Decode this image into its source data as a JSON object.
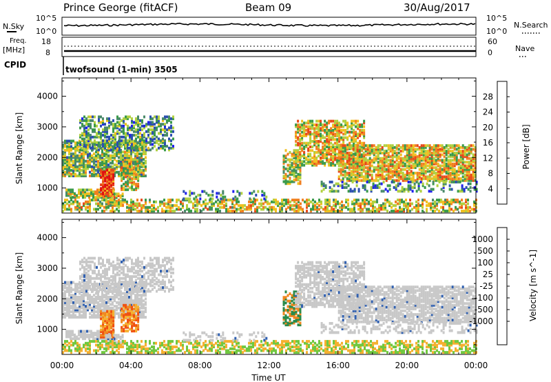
{
  "header": {
    "station": "Prince George (fitACF)",
    "beam": "Beam 09",
    "date": "30/Aug/2017"
  },
  "top_panels": {
    "nsky_label": "N.Sky",
    "nsearch_label": "N.Search",
    "nsky_ticks": [
      "10^5",
      "10^0"
    ],
    "nsearch_ticks": [
      "10^5",
      "10^0"
    ],
    "freq_label": "Freq.",
    "freq_unit": "[MHz]",
    "freq_ticks": [
      "18",
      "8"
    ],
    "nave_label": "Nave",
    "nave_ticks": [
      "60",
      "0"
    ],
    "cpid_label": "CPID",
    "cpid_text": "twofsound (1-min) 3505"
  },
  "colors": {
    "power": [
      "#2020ee",
      "#2c4fb0",
      "#4a8a6a",
      "#3a9a4a",
      "#b0d040",
      "#f0c020",
      "#f08020",
      "#e84818",
      "#e01010"
    ],
    "velocity": [
      "#e01010",
      "#f05010",
      "#f08820",
      "#f5b030",
      "#c8c8c8",
      "#c8c8c8",
      "#70c840",
      "#2a8a4a",
      "#3060b0",
      "#2040c0"
    ]
  },
  "chart_data": [
    {
      "type": "heatmap",
      "name": "power",
      "xlabel": "",
      "ylabel": "Slant Range [km]",
      "x_ticks": [
        "00:00",
        "04:00",
        "08:00",
        "12:00",
        "16:00",
        "20:00",
        "00:00"
      ],
      "xlim_hours": [
        0,
        24
      ],
      "ylim": [
        180,
        4600
      ],
      "y_ticks": [
        1000,
        2000,
        3000,
        4000
      ],
      "colorbar_label": "Power [dB]",
      "colorbar_ticks": [
        "4",
        "8",
        "12",
        "16",
        "20",
        "24",
        "28"
      ],
      "clim": [
        0,
        32
      ]
    },
    {
      "type": "heatmap",
      "name": "velocity",
      "xlabel": "Time UT",
      "ylabel": "Slant Range [km]",
      "x_ticks": [
        "00:00",
        "04:00",
        "08:00",
        "12:00",
        "16:00",
        "20:00",
        "00:00"
      ],
      "xlim_hours": [
        0,
        24
      ],
      "ylim": [
        180,
        4600
      ],
      "y_ticks": [
        1000,
        2000,
        3000,
        4000
      ],
      "colorbar_label": "Velocity [m s^-1]",
      "colorbar_ticks": [
        "1000",
        "500",
        "100",
        "25",
        "-25",
        "-100",
        "-500",
        "-1000"
      ]
    }
  ]
}
